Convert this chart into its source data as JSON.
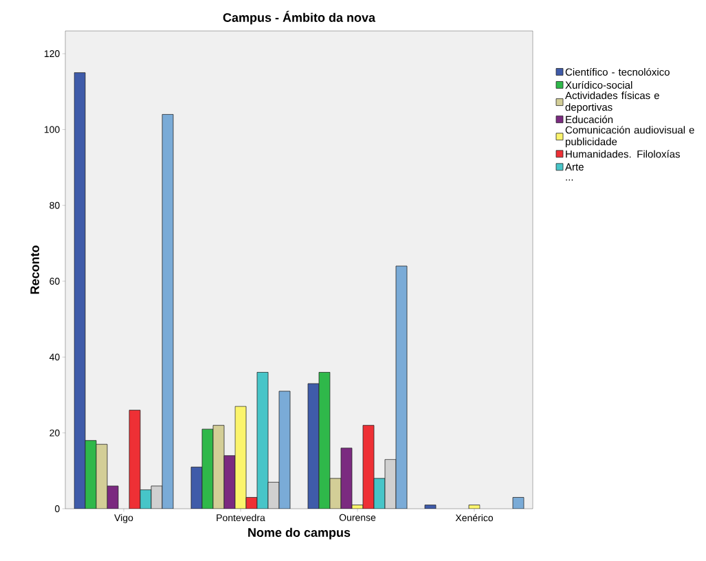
{
  "chart_data": {
    "type": "bar",
    "title": "Campus - Ámbito da nova",
    "xlabel": "Nome do campus",
    "ylabel": "Reconto",
    "categories": [
      "Vigo",
      "Pontevedra",
      "Ourense",
      "Xenérico"
    ],
    "series": [
      {
        "name": "Científico - tecnolóxico",
        "color": "#3f5ba9",
        "values": [
          115,
          11,
          33,
          1
        ]
      },
      {
        "name": "Xurídico-social",
        "color": "#2fb84a",
        "values": [
          18,
          21,
          36,
          null
        ]
      },
      {
        "name": "Actividades físicas e deportivas",
        "color": "#d3ce97",
        "values": [
          17,
          22,
          8,
          null
        ]
      },
      {
        "name": "Educación",
        "color": "#7b2a80",
        "values": [
          6,
          14,
          16,
          null
        ]
      },
      {
        "name": "Comunicación audiovisual e publicidade",
        "color": "#fbf46c",
        "values": [
          null,
          27,
          1,
          1
        ]
      },
      {
        "name": "Humanidades. Filoloxías",
        "color": "#ee3035",
        "values": [
          26,
          3,
          22,
          null
        ]
      },
      {
        "name": "Arte",
        "color": "#47c5c8",
        "values": [
          5,
          36,
          8,
          null
        ]
      },
      {
        "color": "#d0d0d0",
        "values": [
          6,
          7,
          13,
          null
        ]
      },
      {
        "color": "#7aabd7",
        "values": [
          104,
          31,
          64,
          3
        ]
      }
    ],
    "annotations": [
      "..."
    ],
    "ylim": [
      0,
      126
    ],
    "yticks": [
      0,
      20,
      40,
      60,
      80,
      100,
      120
    ],
    "legend": "right"
  }
}
